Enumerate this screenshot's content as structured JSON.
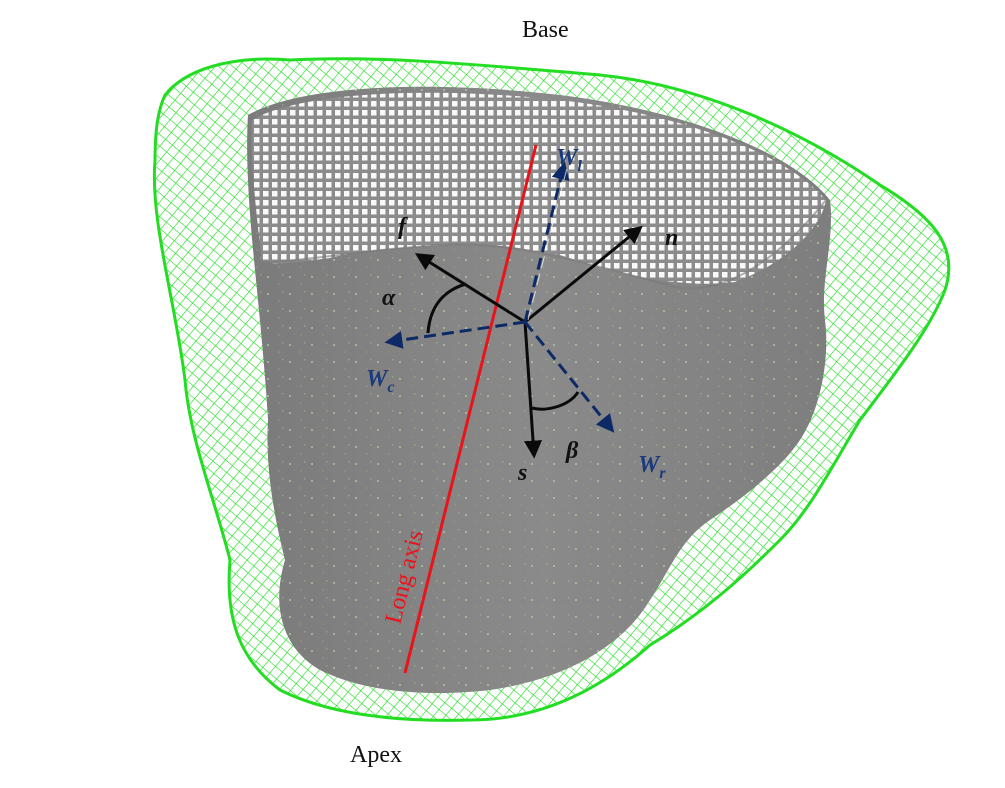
{
  "labels": {
    "base": "Base",
    "apex": "Apex",
    "long_axis": "Long axis",
    "f": "f",
    "n": "n",
    "s": "s",
    "alpha": "α",
    "beta": "β",
    "w_l_main": "W",
    "w_l_sub": "l",
    "w_c_main": "W",
    "w_c_sub": "c",
    "w_r_main": "W",
    "w_r_sub": "r"
  },
  "colors": {
    "epicardium_mesh": "#22dd22",
    "endocardium_surface": "#858585",
    "inner_mesh": "#ffffff",
    "long_axis": "#e8141c",
    "fiber_vectors": "#0a0a0a",
    "wall_vectors": "#0d2a66",
    "wall_labels": "#1a3a7a",
    "background": "#ffffff"
  }
}
